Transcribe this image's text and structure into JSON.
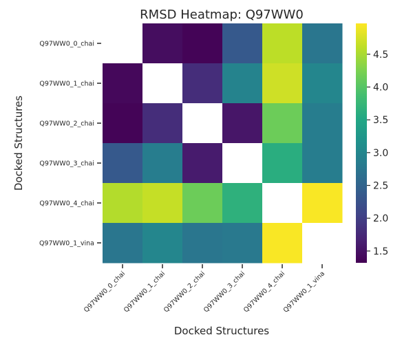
{
  "chart_data": {
    "type": "heatmap",
    "title": "RMSD Heatmap: Q97WW0",
    "xlabel": "Docked Structures",
    "ylabel": "Docked Structures",
    "labels": [
      "Q97WW0_0_chai",
      "Q97WW0_1_chai",
      "Q97WW0_2_chai",
      "Q97WW0_3_chai",
      "Q97WW0_4_chai",
      "Q97WW0_1_vina"
    ],
    "matrix": [
      [
        null,
        1.45,
        1.35,
        2.35,
        4.6,
        2.75
      ],
      [
        1.4,
        null,
        1.8,
        2.95,
        4.7,
        3.0
      ],
      [
        1.35,
        1.8,
        null,
        1.55,
        4.15,
        2.85
      ],
      [
        2.35,
        2.85,
        1.6,
        null,
        3.6,
        2.85
      ],
      [
        4.55,
        4.65,
        4.15,
        3.65,
        null,
        4.95
      ],
      [
        2.75,
        3.0,
        2.75,
        2.8,
        4.95,
        null
      ]
    ],
    "colorbar": {
      "colormap": "viridis",
      "range": [
        1.32,
        4.97
      ],
      "ticks": [
        "1.5",
        "2.0",
        "2.5",
        "3.0",
        "3.5",
        "4.0",
        "4.5"
      ]
    }
  }
}
